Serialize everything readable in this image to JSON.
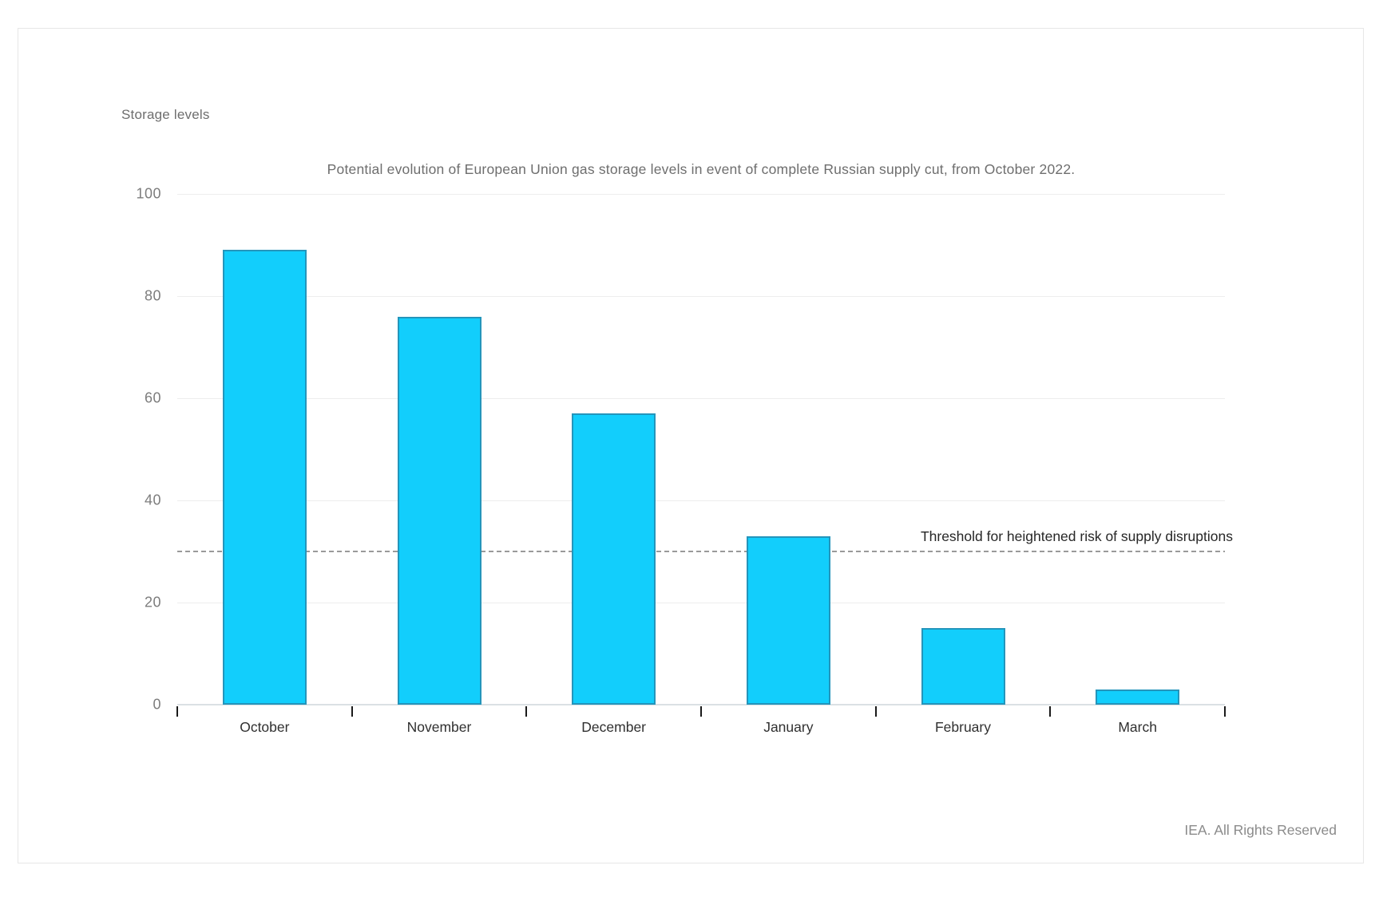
{
  "page": {
    "footer": "IEA. All Rights Reserved"
  },
  "chart_data": {
    "type": "bar",
    "title": "Potential evolution of European Union gas storage levels in event of complete Russian supply cut, from October 2022.",
    "ylabel": "Storage levels",
    "xlabel": "",
    "categories": [
      "October",
      "November",
      "December",
      "January",
      "February",
      "March"
    ],
    "values": [
      89,
      76,
      57,
      33,
      15,
      3
    ],
    "ylim": [
      0,
      100
    ],
    "yticks": [
      0,
      20,
      40,
      60,
      80,
      100
    ],
    "grid": true,
    "legend": "none",
    "threshold": {
      "value": 30,
      "label": "Threshold for heightened risk of supply disruptions"
    },
    "colors": {
      "bar_fill": "#12cefc",
      "bar_border": "#2495bb",
      "gridline": "#ededed",
      "axis_line": "#dbe0e4",
      "dashed_line": "#9a9a9a",
      "tick": "#1a1a1a"
    }
  }
}
